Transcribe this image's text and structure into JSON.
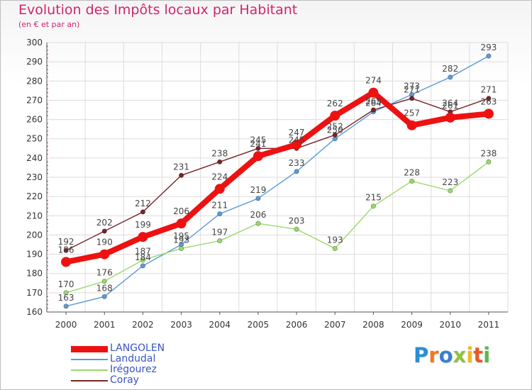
{
  "chart_data": {
    "type": "line",
    "title": "Evolution des Impôts locaux par Habitant",
    "subtitle": "(en € et par an)",
    "xlabel": "",
    "ylabel": "",
    "categories": [
      "2000",
      "2001",
      "2002",
      "2003",
      "2004",
      "2005",
      "2006",
      "2007",
      "2008",
      "2009",
      "2010",
      "2011"
    ],
    "ylim": [
      160,
      300
    ],
    "yticks": [
      160,
      170,
      180,
      190,
      200,
      210,
      220,
      230,
      240,
      250,
      260,
      270,
      280,
      290,
      300
    ],
    "grid": true,
    "legend_position": "bottom-left",
    "series": [
      {
        "name": "LANGOLEN",
        "color": "#ee1111",
        "emphasis": true,
        "values": [
          186,
          190,
          199,
          206,
          224,
          241,
          247,
          262,
          274,
          257,
          261,
          263
        ]
      },
      {
        "name": "Landudal",
        "color": "#5b9bd5",
        "emphasis": false,
        "values": [
          163,
          168,
          184,
          195,
          211,
          219,
          233,
          250,
          264,
          273,
          282,
          293
        ]
      },
      {
        "name": "Irégourez",
        "color": "#99d96b",
        "emphasis": false,
        "values": [
          170,
          176,
          187,
          193,
          197,
          206,
          203,
          193,
          215,
          228,
          223,
          238
        ]
      },
      {
        "name": "Coray",
        "color": "#7a2226",
        "emphasis": false,
        "values": [
          192,
          202,
          212,
          231,
          238,
          245,
          245,
          252,
          265,
          271,
          264,
          271
        ]
      }
    ]
  },
  "brand": {
    "letters": [
      "P",
      "r",
      "o",
      "x",
      "i",
      "t",
      "i"
    ],
    "colors": [
      "#2a8fd6",
      "#f07a1a",
      "#3a7fd0",
      "#8fc43c",
      "#f0b81a",
      "#e8592a",
      "#58b947"
    ]
  }
}
